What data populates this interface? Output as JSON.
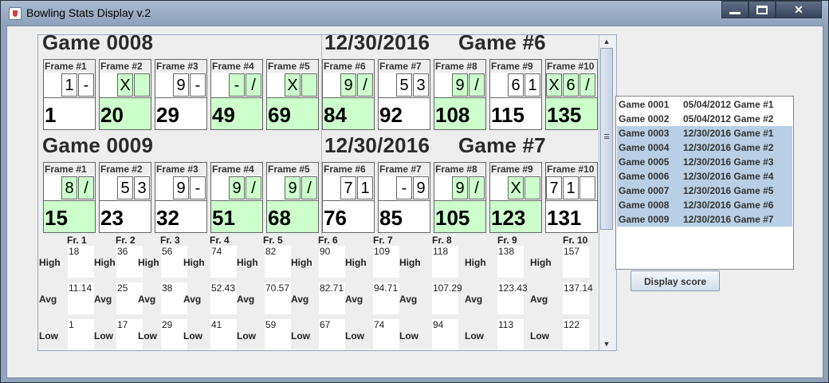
{
  "window": {
    "title": "Bowling Stats Display v.2",
    "close_glyph": "✕"
  },
  "games": [
    {
      "game_label": "Game 0008",
      "date_label": "12/30/2016",
      "number_label": "Game #6",
      "frames": [
        {
          "label": "Frame #1",
          "rolls": [
            "1",
            "-"
          ],
          "total": "1",
          "green": false
        },
        {
          "label": "Frame #2",
          "rolls": [
            "X",
            ""
          ],
          "total": "20",
          "green": true
        },
        {
          "label": "Frame #3",
          "rolls": [
            "9",
            "-"
          ],
          "total": "29",
          "green": false
        },
        {
          "label": "Frame #4",
          "rolls": [
            "-",
            "/"
          ],
          "total": "49",
          "green": true
        },
        {
          "label": "Frame #5",
          "rolls": [
            "X",
            ""
          ],
          "total": "69",
          "green": true
        },
        {
          "label": "Frame #6",
          "rolls": [
            "9",
            "/"
          ],
          "total": "84",
          "green": true
        },
        {
          "label": "Frame #7",
          "rolls": [
            "5",
            "3"
          ],
          "total": "92",
          "green": false
        },
        {
          "label": "Frame #8",
          "rolls": [
            "9",
            "/"
          ],
          "total": "108",
          "green": true
        },
        {
          "label": "Frame #9",
          "rolls": [
            "6",
            "1"
          ],
          "total": "115",
          "green": false
        },
        {
          "label": "Frame #10",
          "rolls": [
            "X",
            "6",
            "/"
          ],
          "total": "135",
          "green": true
        }
      ]
    },
    {
      "game_label": "Game 0009",
      "date_label": "12/30/2016",
      "number_label": "Game #7",
      "frames": [
        {
          "label": "Frame #1",
          "rolls": [
            "8",
            "/"
          ],
          "total": "15",
          "green": true
        },
        {
          "label": "Frame #2",
          "rolls": [
            "5",
            "3"
          ],
          "total": "23",
          "green": false
        },
        {
          "label": "Frame #3",
          "rolls": [
            "9",
            "-"
          ],
          "total": "32",
          "green": false
        },
        {
          "label": "Frame #4",
          "rolls": [
            "9",
            "/"
          ],
          "total": "51",
          "green": true
        },
        {
          "label": "Frame #5",
          "rolls": [
            "9",
            "/"
          ],
          "total": "68",
          "green": true
        },
        {
          "label": "Frame #6",
          "rolls": [
            "7",
            "1"
          ],
          "total": "76",
          "green": false
        },
        {
          "label": "Frame #7",
          "rolls": [
            "-",
            "9"
          ],
          "total": "85",
          "green": false
        },
        {
          "label": "Frame #8",
          "rolls": [
            "9",
            "/"
          ],
          "total": "105",
          "green": true
        },
        {
          "label": "Frame #9",
          "rolls": [
            "X",
            ""
          ],
          "total": "123",
          "green": true
        },
        {
          "label": "Frame #10",
          "rolls": [
            "7",
            "1",
            ""
          ],
          "total": "131",
          "green": false
        }
      ]
    }
  ],
  "stats": {
    "frame_labels": [
      "Fr. 1",
      "Fr. 2",
      "Fr. 3",
      "Fr. 4",
      "Fr. 5",
      "Fr. 6",
      "Fr. 7",
      "Fr. 8",
      "Fr. 9",
      "Fr. 10"
    ],
    "high_label": "High",
    "avg_label": "Avg",
    "low_label": "Low",
    "high": [
      "18",
      "36",
      "56",
      "74",
      "82",
      "90",
      "109",
      "118",
      "138",
      "157"
    ],
    "avg": [
      "11.14",
      "25",
      "38",
      "52.43",
      "70.57",
      "82.71",
      "94.71",
      "107.29",
      "123.43",
      "137.14"
    ],
    "low": [
      "1",
      "17",
      "29",
      "41",
      "59",
      "67",
      "74",
      "94",
      "113",
      "122"
    ]
  },
  "game_list": [
    {
      "id": "Game 0001",
      "desc": "05/04/2012 Game #1",
      "selected": false
    },
    {
      "id": "Game 0002",
      "desc": "05/04/2012 Game #2",
      "selected": false
    },
    {
      "id": "Game 0003",
      "desc": "12/30/2016 Game #1",
      "selected": true
    },
    {
      "id": "Game 0004",
      "desc": "12/30/2016 Game #2",
      "selected": true
    },
    {
      "id": "Game 0005",
      "desc": "12/30/2016 Game #3",
      "selected": true
    },
    {
      "id": "Game 0006",
      "desc": "12/30/2016 Game #4",
      "selected": true
    },
    {
      "id": "Game 0007",
      "desc": "12/30/2016 Game #5",
      "selected": true
    },
    {
      "id": "Game 0008",
      "desc": "12/30/2016 Game #6",
      "selected": true
    },
    {
      "id": "Game 0009",
      "desc": "12/30/2016 Game #7",
      "selected": true
    }
  ],
  "display_button": "Display score",
  "colors": {
    "spare_strike_fill": "#ccffcc",
    "selection": "#b8cfe5"
  }
}
